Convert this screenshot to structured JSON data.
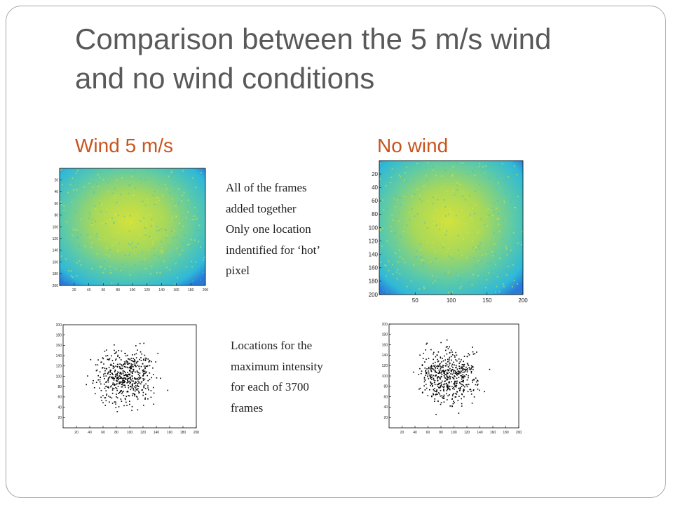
{
  "title_lines": [
    "Comparison between the 5 m/s wind",
    "and no wind conditions"
  ],
  "headings": [
    "Wind 5 m/s",
    "No wind"
  ],
  "captions": [
    {
      "lines": [
        "All of the frames",
        "added together",
        "Only one location",
        "indentified for ‘hot’",
        "pixel"
      ]
    },
    {
      "lines": [
        "Locations for the",
        "maximum intensity",
        "for each of 3700",
        "frames"
      ]
    }
  ],
  "plots": [
    {
      "type": "heatmap",
      "xlim": [
        0,
        200
      ],
      "ylim": [
        0,
        200
      ],
      "y_reversed": true,
      "xticks": [
        20,
        40,
        60,
        80,
        100,
        120,
        140,
        160,
        180,
        200
      ],
      "yticks": [
        20,
        40,
        60,
        80,
        100,
        120,
        140,
        160,
        180,
        200
      ]
    },
    {
      "type": "heatmap",
      "xlim": [
        0,
        200
      ],
      "ylim": [
        0,
        200
      ],
      "y_reversed": true,
      "xticks": [
        50,
        100,
        150,
        200
      ],
      "yticks": [
        20,
        40,
        60,
        80,
        100,
        120,
        140,
        160,
        180,
        200
      ]
    },
    {
      "type": "scatter",
      "xlim": [
        0,
        200
      ],
      "ylim": [
        0,
        200
      ],
      "y_reversed": false,
      "xticks": [
        20,
        40,
        60,
        80,
        100,
        120,
        140,
        160,
        180,
        200
      ],
      "yticks": [
        20,
        40,
        60,
        80,
        100,
        120,
        140,
        160,
        180,
        200
      ]
    },
    {
      "type": "scatter",
      "xlim": [
        0,
        200
      ],
      "ylim": [
        0,
        200
      ],
      "y_reversed": false,
      "xticks": [
        20,
        40,
        60,
        80,
        100,
        120,
        140,
        160,
        180,
        200
      ],
      "yticks": [
        20,
        40,
        60,
        80,
        100,
        120,
        140,
        160,
        180,
        200
      ]
    }
  ]
}
